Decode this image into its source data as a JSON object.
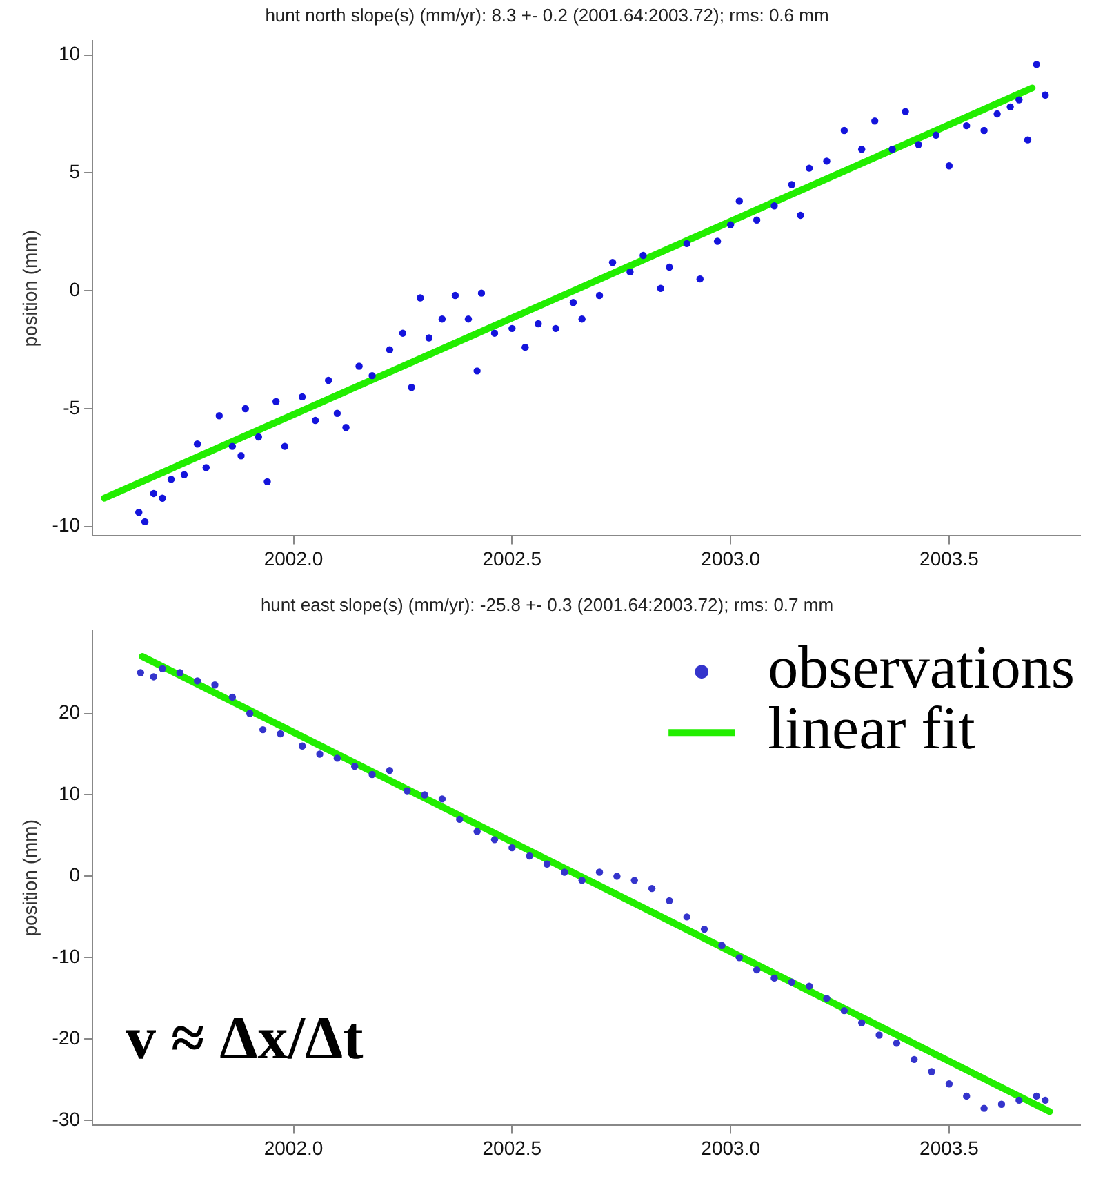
{
  "chart_data": [
    {
      "type": "scatter",
      "title": "hunt north slope(s) (mm/yr): 8.3 +- 0.2 (2001.64:2003.72); rms: 0.6 mm",
      "ylabel": "position (mm)",
      "xlim": [
        2001.54,
        2003.8
      ],
      "xticks": [
        {
          "value": 2002,
          "label": "2002.0"
        },
        {
          "value": 2002.5,
          "label": "2002.5"
        },
        {
          "value": 2003,
          "label": "2003.0"
        },
        {
          "value": 2003.5,
          "label": "2003.5"
        }
      ],
      "ylim": [
        -10.4,
        10.6
      ],
      "yticks": [
        -10,
        -5,
        0,
        5,
        10
      ],
      "grid": false,
      "legend": false,
      "series": [
        {
          "marker": "circle",
          "color": "#1414dc",
          "x": [
            2001.646,
            2001.66,
            2001.68,
            2001.7,
            2001.72,
            2001.75,
            2001.78,
            2001.8,
            2001.83,
            2001.86,
            2001.88,
            2001.89,
            2001.92,
            2001.94,
            2001.96,
            2001.98,
            2002.02,
            2002.05,
            2002.08,
            2002.1,
            2002.12,
            2002.15,
            2002.18,
            2002.22,
            2002.25,
            2002.27,
            2002.29,
            2002.31,
            2002.34,
            2002.37,
            2002.4,
            2002.42,
            2002.43,
            2002.46,
            2002.5,
            2002.53,
            2002.56,
            2002.6,
            2002.64,
            2002.66,
            2002.7,
            2002.73,
            2002.77,
            2002.8,
            2002.84,
            2002.86,
            2002.9,
            2002.93,
            2002.97,
            2003.0,
            2003.02,
            2003.06,
            2003.1,
            2003.14,
            2003.16,
            2003.18,
            2003.22,
            2003.26,
            2003.3,
            2003.33,
            2003.37,
            2003.4,
            2003.43,
            2003.47,
            2003.5,
            2003.54,
            2003.58,
            2003.61,
            2003.64,
            2003.66,
            2003.68,
            2003.7,
            2003.72
          ],
          "values": [
            -9.4,
            -9.8,
            -8.6,
            -8.8,
            -8.0,
            -7.8,
            -6.5,
            -7.5,
            -5.3,
            -6.6,
            -7.0,
            -5.0,
            -6.2,
            -8.1,
            -4.7,
            -6.6,
            -4.5,
            -5.5,
            -3.8,
            -5.2,
            -5.8,
            -3.2,
            -3.6,
            -2.5,
            -1.8,
            -4.1,
            -0.3,
            -2.0,
            -1.2,
            -0.2,
            -1.2,
            -3.4,
            -0.1,
            -1.8,
            -1.6,
            -2.4,
            -1.4,
            -1.6,
            -0.5,
            -1.2,
            -0.2,
            1.2,
            0.8,
            1.5,
            0.1,
            1.0,
            2.0,
            0.5,
            2.1,
            2.8,
            3.8,
            3.0,
            3.6,
            4.5,
            3.2,
            5.2,
            5.5,
            6.8,
            6.0,
            7.2,
            6.0,
            7.6,
            6.2,
            6.6,
            5.3,
            7.0,
            6.8,
            7.5,
            7.8,
            8.1,
            6.4,
            9.6,
            8.3
          ]
        },
        {
          "type": "line",
          "marker": "none",
          "line_style": "solid",
          "color": "#22ee00",
          "x": [
            2001.567,
            2003.69
          ],
          "values": [
            -8.8,
            8.6
          ]
        }
      ]
    },
    {
      "type": "scatter",
      "title": "hunt east slope(s) (mm/yr): -25.8 +- 0.3 (2001.64:2003.72); rms: 0.7 mm",
      "ylabel": "position (mm)",
      "xlim": [
        2001.54,
        2003.8
      ],
      "xticks": [
        {
          "value": 2002,
          "label": "2002.0"
        },
        {
          "value": 2002.5,
          "label": "2002.5"
        },
        {
          "value": 2003,
          "label": "2003.0"
        },
        {
          "value": 2003.5,
          "label": "2003.5"
        }
      ],
      "ylim": [
        -30.6,
        30.2
      ],
      "yticks": [
        -30,
        -20,
        -10,
        0,
        10,
        20
      ],
      "grid": false,
      "legend": "top right",
      "annotations": [
        "v ≈ Δx/Δt"
      ],
      "series": [
        {
          "name": "observations",
          "marker": "circle",
          "color": "#3434cc",
          "x": [
            2001.65,
            2001.68,
            2001.7,
            2001.74,
            2001.78,
            2001.82,
            2001.86,
            2001.9,
            2001.93,
            2001.97,
            2002.02,
            2002.06,
            2002.1,
            2002.14,
            2002.18,
            2002.22,
            2002.26,
            2002.3,
            2002.34,
            2002.38,
            2002.42,
            2002.46,
            2002.5,
            2002.54,
            2002.58,
            2002.62,
            2002.66,
            2002.7,
            2002.74,
            2002.78,
            2002.82,
            2002.86,
            2002.9,
            2002.94,
            2002.98,
            2003.02,
            2003.06,
            2003.1,
            2003.14,
            2003.18,
            2003.22,
            2003.26,
            2003.3,
            2003.34,
            2003.38,
            2003.42,
            2003.46,
            2003.5,
            2003.54,
            2003.58,
            2003.62,
            2003.66,
            2003.7,
            2003.72
          ],
          "values": [
            25.0,
            24.5,
            25.5,
            25.0,
            24.0,
            23.5,
            22.0,
            20.0,
            18.0,
            17.5,
            16.0,
            15.0,
            14.5,
            13.5,
            12.5,
            13.0,
            10.5,
            10.0,
            9.5,
            7.0,
            5.5,
            4.5,
            3.5,
            2.5,
            1.5,
            0.5,
            -0.5,
            0.5,
            0.0,
            -0.5,
            -1.5,
            -3.0,
            -5.0,
            -6.5,
            -8.5,
            -10.0,
            -11.5,
            -12.5,
            -13.0,
            -13.5,
            -15.0,
            -16.5,
            -18.0,
            -19.5,
            -20.5,
            -22.5,
            -24.0,
            -25.5,
            -27.0,
            -28.5,
            -28.0,
            -27.5,
            -27.0,
            -27.5
          ]
        },
        {
          "type": "line",
          "name": "linear fit",
          "marker": "none",
          "line_style": "solid",
          "color": "#22ee00",
          "x": [
            2001.654,
            2003.73
          ],
          "values": [
            27.0,
            -28.9
          ]
        }
      ]
    }
  ]
}
